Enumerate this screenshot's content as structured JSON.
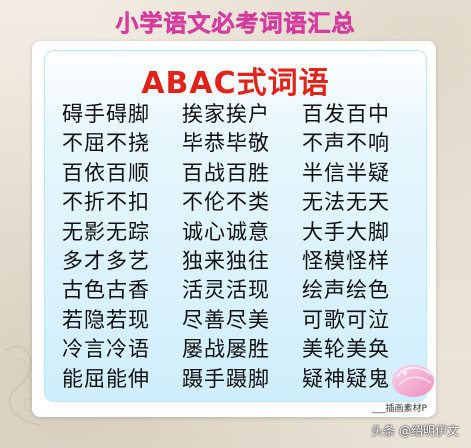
{
  "header": {
    "title": "小学语文必考词语汇总"
  },
  "panel": {
    "heading": "ABAC式词语",
    "rows": [
      [
        "碍手碍脚",
        "挨家挨户",
        "百发百中"
      ],
      [
        "不屈不挠",
        "毕恭毕敬",
        "不声不响"
      ],
      [
        "百依百顺",
        "百战百胜",
        "半信半疑"
      ],
      [
        "不折不扣",
        "不伦不类",
        "无法无天"
      ],
      [
        "无影无踪",
        "诚心诚意",
        "大手大脚"
      ],
      [
        "多才多艺",
        "独来独往",
        "怪模怪样"
      ],
      [
        "古色古香",
        "活灵活现",
        "绘声绘色"
      ],
      [
        "若隐若现",
        "尽善尽美",
        "可歌可泣"
      ],
      [
        "冷言冷语",
        "屡战屡胜",
        "美轮美奂"
      ],
      [
        "能屈能伸",
        "蹑手蹑脚",
        "疑神疑鬼"
      ]
    ]
  },
  "footer": {
    "corner_mark": "___插画素材P",
    "watermark": "头条 @绍明伊文"
  },
  "colors": {
    "title": "#e94bb3",
    "heading": "#e2231a",
    "panel": "#cfeefb"
  }
}
